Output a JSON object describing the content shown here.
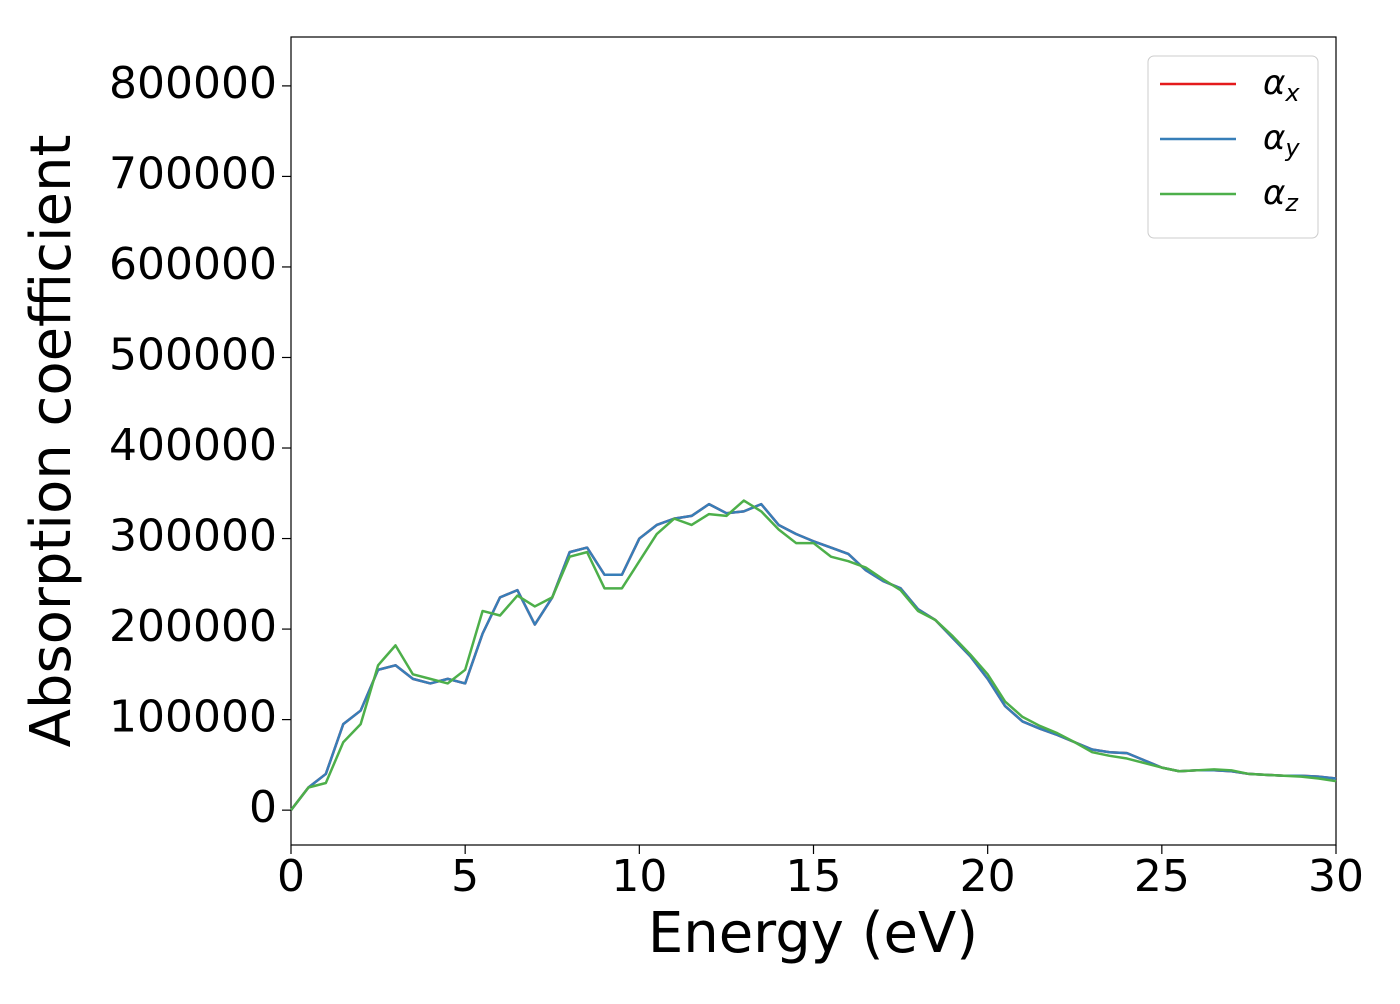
{
  "chart_data": {
    "type": "line",
    "xlabel": "Energy (eV)",
    "ylabel": "Absorption coefficient",
    "x": [
      0,
      0.5,
      1,
      1.5,
      2,
      2.5,
      3,
      3.5,
      4,
      4.5,
      5,
      5.5,
      6,
      6.5,
      7,
      7.5,
      8,
      8.5,
      9,
      9.5,
      10,
      10.5,
      11,
      11.5,
      12,
      12.5,
      13,
      13.5,
      14,
      14.5,
      15,
      15.5,
      16,
      16.5,
      17,
      17.5,
      18,
      18.5,
      19,
      19.5,
      20,
      20.5,
      21,
      21.5,
      22,
      22.5,
      23,
      23.5,
      24,
      24.5,
      25,
      25.5,
      26,
      26.5,
      27,
      27.5,
      28,
      28.5,
      29,
      29.5,
      30
    ],
    "series": [
      {
        "name": "αx",
        "color": "#e41a1c",
        "values": [
          0,
          25000,
          40000,
          95000,
          110000,
          155000,
          160000,
          145000,
          140000,
          145000,
          140000,
          195000,
          235000,
          243000,
          205000,
          235000,
          285000,
          290000,
          260000,
          260000,
          300000,
          315000,
          322000,
          325000,
          338000,
          328000,
          330000,
          338000,
          315000,
          305000,
          297000,
          290000,
          283000,
          265000,
          253000,
          245000,
          222000,
          210000,
          190000,
          170000,
          145000,
          115000,
          98000,
          90000,
          83000,
          75000,
          67000,
          64000,
          63000,
          55000,
          47000,
          43000,
          44000,
          44000,
          43000,
          40000,
          39000,
          38000,
          38000,
          37000,
          35000
        ]
      },
      {
        "name": "αy",
        "color": "#377eb8",
        "values": [
          0,
          25000,
          40000,
          95000,
          110000,
          155000,
          160000,
          145000,
          140000,
          145000,
          140000,
          195000,
          235000,
          243000,
          205000,
          235000,
          285000,
          290000,
          260000,
          260000,
          300000,
          315000,
          322000,
          325000,
          338000,
          328000,
          330000,
          338000,
          315000,
          305000,
          297000,
          290000,
          283000,
          265000,
          253000,
          245000,
          222000,
          210000,
          190000,
          170000,
          145000,
          115000,
          98000,
          90000,
          83000,
          75000,
          67000,
          64000,
          63000,
          55000,
          47000,
          43000,
          44000,
          44000,
          43000,
          40000,
          39000,
          38000,
          38000,
          37000,
          35000
        ]
      },
      {
        "name": "αz",
        "color": "#4daf4a",
        "values": [
          0,
          25000,
          30000,
          75000,
          95000,
          160000,
          182000,
          150000,
          145000,
          140000,
          155000,
          220000,
          215000,
          237000,
          225000,
          235000,
          280000,
          285000,
          245000,
          245000,
          275000,
          305000,
          322000,
          315000,
          327000,
          325000,
          342000,
          330000,
          310000,
          295000,
          295000,
          280000,
          275000,
          268000,
          255000,
          243000,
          220000,
          210000,
          192000,
          172000,
          150000,
          120000,
          103000,
          93000,
          85000,
          75000,
          64000,
          60000,
          57000,
          52000,
          47000,
          43000,
          44000,
          45000,
          44000,
          40000,
          39000,
          38000,
          37000,
          35000,
          32000
        ]
      }
    ],
    "xlim": [
      0,
      30
    ],
    "xticks": [
      0,
      5,
      10,
      15,
      20,
      25,
      30
    ],
    "ylim": [
      -38500,
      854000
    ],
    "yticks": [
      0,
      100000,
      200000,
      300000,
      400000,
      500000,
      600000,
      700000,
      800000
    ],
    "grid": false,
    "legend": "upper right"
  }
}
